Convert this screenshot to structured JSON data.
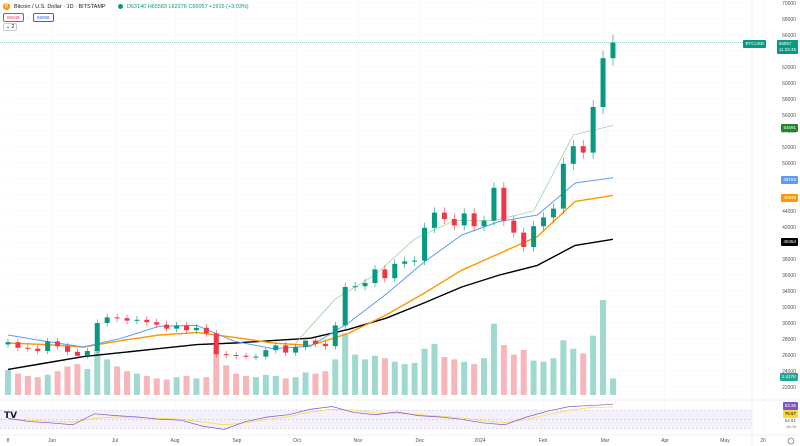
{
  "header": {
    "symbol": "Bitcoin / U.S. Dollar · 1D · BITSTAMP",
    "ohlc": "O63140 H65583 L62376 C65057 +1915 (+3.03%)",
    "sell": "65049",
    "buy": "65058",
    "indicator_count": "2",
    "symbol_icon": "bitcoin-logo"
  },
  "price_label": {
    "ticker": "BTCUSD",
    "last": "65057",
    "countdown": "11:33:45"
  },
  "ma_labels": {
    "green": "54691",
    "blue": "48153",
    "orange": "45948",
    "black": "40454"
  },
  "volume_label": "1.417K",
  "rsi_labels": {
    "rsi": "83.36",
    "ma": "76.57",
    "upper": "64.61",
    "lower": "46.05"
  },
  "colors": {
    "up": "#089981",
    "down": "#f23645",
    "ma20": "#4caf50",
    "ma50": "#2962ff",
    "ma100": "#ff9800",
    "ma200": "#000000",
    "rsi": "#7e57c2",
    "rsi_ma": "#fdd835"
  },
  "y_ticks": [
    "70000",
    "68000",
    "66000",
    "62000",
    "60000",
    "58000",
    "56000",
    "54000",
    "52000",
    "50000",
    "44000",
    "42000",
    "38000",
    "36000",
    "34000",
    "32000",
    "30000",
    "28000",
    "26000",
    "24000",
    "22000"
  ],
  "x_ticks": [
    "8",
    "Jun",
    "Jul",
    "Aug",
    "Sep",
    "Oct",
    "Nov",
    "Dec",
    "2024",
    "Feb",
    "Mar",
    "Apr",
    "May",
    "20"
  ],
  "chart_data": {
    "type": "candlestick",
    "ylim": [
      20000,
      70000
    ],
    "closes": [
      27600,
      26900,
      26800,
      26500,
      27700,
      27100,
      26400,
      25900,
      26500,
      30000,
      30700,
      30600,
      30300,
      30400,
      30100,
      29800,
      29300,
      29700,
      29100,
      29400,
      28700,
      26100,
      26000,
      25900,
      25800,
      25800,
      26600,
      27200,
      26300,
      27000,
      27800,
      27400,
      27100,
      29700,
      34500,
      34600,
      35000,
      36700,
      35600,
      37400,
      37700,
      37800,
      41900,
      43800,
      43000,
      42200,
      43700,
      42100,
      42800,
      46900,
      42800,
      41300,
      39500,
      42100,
      43200,
      44300,
      49900,
      52100,
      51300,
      57000,
      63100,
      65057
    ],
    "volume": [
      2.1,
      1.8,
      1.6,
      1.5,
      1.7,
      2.0,
      2.4,
      2.6,
      2.2,
      3.8,
      3.0,
      2.4,
      2.0,
      1.8,
      1.6,
      1.4,
      1.3,
      1.5,
      1.6,
      1.4,
      1.5,
      4.2,
      2.5,
      1.8,
      1.6,
      1.5,
      1.7,
      1.6,
      1.4,
      1.5,
      1.9,
      1.8,
      2.0,
      3.0,
      5.2,
      3.4,
      3.0,
      3.3,
      3.1,
      2.8,
      2.6,
      2.7,
      3.9,
      4.3,
      3.2,
      3.0,
      2.8,
      2.6,
      3.1,
      6.0,
      4.2,
      3.4,
      3.8,
      2.9,
      2.8,
      3.1,
      4.6,
      3.9,
      3.5,
      5.0,
      8.0,
      1.4
    ],
    "ma200": [
      24200,
      25000,
      25800,
      26300,
      26800,
      27300,
      27500,
      27800,
      28100,
      29200,
      30600,
      32500,
      34500,
      36000,
      37200,
      39700,
      40454
    ],
    "ma100": [
      27500,
      27300,
      27000,
      27800,
      28500,
      28800,
      28200,
      27500,
      27200,
      28700,
      31000,
      33700,
      36600,
      38700,
      40800,
      45200,
      45948
    ],
    "ma50": [
      28500,
      27700,
      27000,
      28100,
      29600,
      29700,
      27700,
      26800,
      27100,
      30000,
      33600,
      37600,
      41000,
      42700,
      43500,
      47500,
      48153
    ],
    "ma20": [
      27500,
      33000,
      36000,
      40500,
      42800,
      42800,
      44000,
      53500,
      54691
    ],
    "rsi": [
      52,
      45,
      42,
      38,
      62,
      58,
      55,
      50,
      48,
      35,
      28,
      45,
      55,
      60,
      72,
      78,
      65,
      60,
      66,
      58,
      55,
      50,
      42,
      38,
      55,
      68,
      78,
      80,
      83
    ],
    "rsi_ma": [
      50,
      48,
      45,
      44,
      52,
      55,
      54,
      52,
      50,
      44,
      38,
      42,
      50,
      56,
      66,
      72,
      70,
      64,
      63,
      60,
      57,
      53,
      47,
      43,
      50,
      60,
      70,
      76,
      77
    ]
  }
}
